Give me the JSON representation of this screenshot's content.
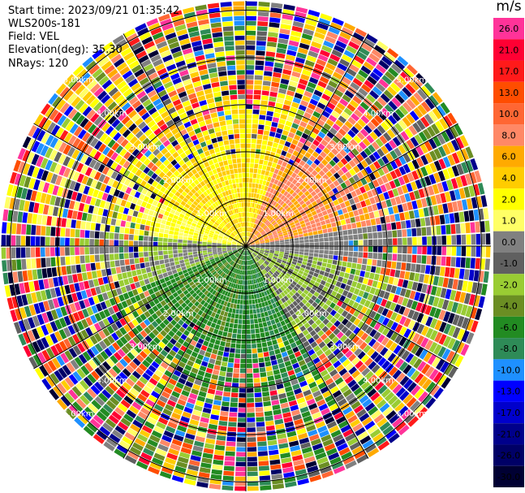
{
  "info": {
    "start_time": "Start time: 2023/09/21 01:35:42",
    "instrument": "WLS200s-181",
    "field": "Field: VEL",
    "elevation": "Elevation(deg): 35.30",
    "nrays": "NRays: 120"
  },
  "chart_data": {
    "type": "ppi-polar",
    "field": "VEL",
    "units": "m/s",
    "rays": 120,
    "max_range_km": 5.2,
    "range_rings_km": [
      1.0,
      2.0,
      3.0,
      4.0,
      5.0
    ],
    "ring_labels": [
      "1.00km",
      "2.00km",
      "3.00km",
      "4.00km",
      "5.00km"
    ],
    "radial_lines_deg": [
      0,
      30,
      60,
      90,
      120,
      150
    ],
    "colorbar": {
      "unit_label": "m/s",
      "bands": [
        {
          "label": "26.0",
          "color": "#ff3399"
        },
        {
          "label": "21.0",
          "color": "#ff0033"
        },
        {
          "label": "17.0",
          "color": "#ff1a1a"
        },
        {
          "label": "13.0",
          "color": "#ff4d00"
        },
        {
          "label": "10.0",
          "color": "#ff6633"
        },
        {
          "label": "8.0",
          "color": "#ff8866"
        },
        {
          "label": "6.0",
          "color": "#ffaa00"
        },
        {
          "label": "4.0",
          "color": "#ffcc00"
        },
        {
          "label": "2.0",
          "color": "#ffff00"
        },
        {
          "label": "1.0",
          "color": "#ffff66"
        },
        {
          "label": "0.0",
          "color": "#808080"
        },
        {
          "label": "-1.0",
          "color": "#606060"
        },
        {
          "label": "-2.0",
          "color": "#99cc33"
        },
        {
          "label": "-4.0",
          "color": "#6b8e23"
        },
        {
          "label": "-6.0",
          "color": "#228b22"
        },
        {
          "label": "-8.0",
          "color": "#2e8b57"
        },
        {
          "label": "-10.0",
          "color": "#1e90ff"
        },
        {
          "label": "-13.0",
          "color": "#0000ff"
        },
        {
          "label": "-17.0",
          "color": "#0000cc"
        },
        {
          "label": "-21.0",
          "color": "#00008b"
        },
        {
          "label": "-26.0",
          "color": "#000066"
        },
        {
          "label": "-30.0",
          "color": "#000033"
        }
      ]
    }
  }
}
